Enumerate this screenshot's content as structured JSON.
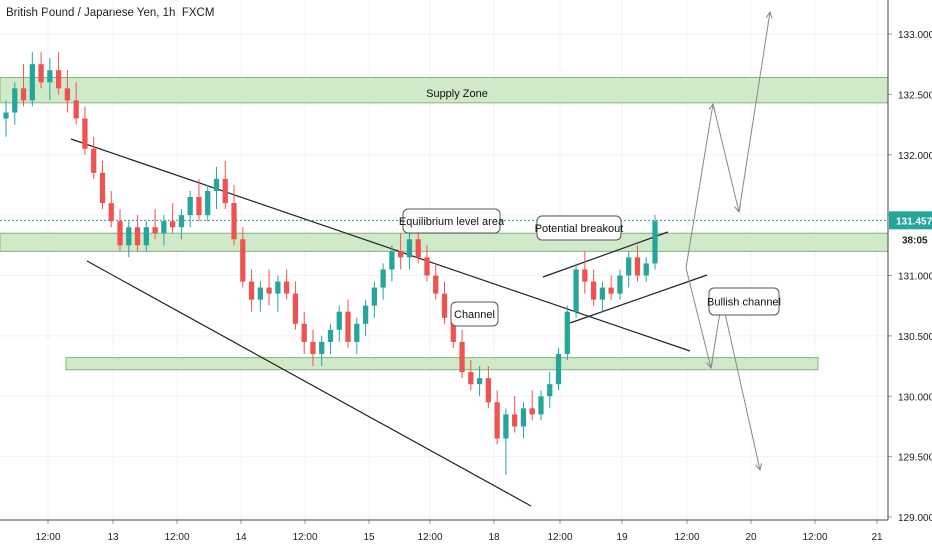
{
  "header": {
    "title": "British Pound / Japanese Yen, 1h, FXCM"
  },
  "colors": {
    "up": "#26a69a",
    "down": "#ef5350",
    "zone_fill": "#c8e6c0",
    "zone_stroke": "#7cb87a",
    "price_line": "#2a9d8f",
    "price_tag": "#26a69a",
    "trend": "#222222",
    "projection": "#888888"
  },
  "chart_data": {
    "type": "candlestick",
    "title": "British Pound / Japanese Yen, 1h, FXCM",
    "ylim": [
      129.0,
      133.3
    ],
    "y_ticks": [
      "133.000",
      "132.500",
      "132.000",
      "131.500",
      "131.000",
      "130.500",
      "130.000",
      "129.500",
      "129.000"
    ],
    "x_ticks": [
      "12:00",
      "13",
      "12:00",
      "14",
      "12:00",
      "15",
      "12:00",
      "18",
      "12:00",
      "19",
      "12:00",
      "20",
      "12:00",
      "21"
    ],
    "current_price": "131.457",
    "countdown": "38:05",
    "candles_ohlc": [
      [
        132.3,
        132.45,
        132.15,
        132.35
      ],
      [
        132.35,
        132.6,
        132.25,
        132.55
      ],
      [
        132.55,
        132.75,
        132.4,
        132.45
      ],
      [
        132.45,
        132.85,
        132.4,
        132.75
      ],
      [
        132.75,
        132.85,
        132.55,
        132.6
      ],
      [
        132.6,
        132.8,
        132.45,
        132.7
      ],
      [
        132.7,
        132.85,
        132.5,
        132.55
      ],
      [
        132.55,
        132.7,
        132.35,
        132.45
      ],
      [
        132.45,
        132.6,
        132.25,
        132.3
      ],
      [
        132.3,
        132.4,
        132.0,
        132.05
      ],
      [
        132.05,
        132.15,
        131.8,
        131.85
      ],
      [
        131.85,
        131.95,
        131.55,
        131.6
      ],
      [
        131.6,
        131.7,
        131.4,
        131.45
      ],
      [
        131.45,
        131.55,
        131.2,
        131.25
      ],
      [
        131.25,
        131.45,
        131.15,
        131.4
      ],
      [
        131.4,
        131.5,
        131.2,
        131.25
      ],
      [
        131.25,
        131.45,
        131.2,
        131.4
      ],
      [
        131.4,
        131.55,
        131.3,
        131.35
      ],
      [
        131.35,
        131.5,
        131.25,
        131.45
      ],
      [
        131.45,
        131.6,
        131.35,
        131.4
      ],
      [
        131.4,
        131.55,
        131.3,
        131.5
      ],
      [
        131.5,
        131.7,
        131.4,
        131.65
      ],
      [
        131.65,
        131.8,
        131.45,
        131.5
      ],
      [
        131.5,
        131.75,
        131.45,
        131.7
      ],
      [
        131.7,
        131.9,
        131.55,
        131.8
      ],
      [
        131.8,
        131.95,
        131.55,
        131.6
      ],
      [
        131.6,
        131.75,
        131.25,
        131.3
      ],
      [
        131.3,
        131.4,
        130.9,
        130.95
      ],
      [
        130.95,
        131.05,
        130.7,
        130.8
      ],
      [
        130.8,
        130.95,
        130.7,
        130.9
      ],
      [
        130.9,
        131.05,
        130.75,
        130.85
      ],
      [
        130.85,
        131.0,
        130.7,
        130.95
      ],
      [
        130.95,
        131.05,
        130.8,
        130.85
      ],
      [
        130.85,
        130.95,
        130.55,
        130.6
      ],
      [
        130.6,
        130.7,
        130.35,
        130.45
      ],
      [
        130.45,
        130.55,
        130.25,
        130.35
      ],
      [
        130.35,
        130.5,
        130.25,
        130.45
      ],
      [
        130.45,
        130.6,
        130.35,
        130.55
      ],
      [
        130.55,
        130.75,
        130.45,
        130.7
      ],
      [
        130.7,
        130.8,
        130.4,
        130.45
      ],
      [
        130.45,
        130.65,
        130.35,
        130.6
      ],
      [
        130.6,
        130.8,
        130.5,
        130.75
      ],
      [
        130.75,
        130.95,
        130.65,
        130.9
      ],
      [
        130.9,
        131.1,
        130.8,
        131.05
      ],
      [
        131.05,
        131.25,
        130.95,
        131.2
      ],
      [
        131.2,
        131.35,
        131.05,
        131.15
      ],
      [
        131.15,
        131.35,
        131.05,
        131.3
      ],
      [
        131.3,
        131.4,
        131.1,
        131.15
      ],
      [
        131.15,
        131.25,
        130.95,
        131.0
      ],
      [
        131.0,
        131.1,
        130.8,
        130.85
      ],
      [
        130.85,
        130.95,
        130.6,
        130.65
      ],
      [
        130.65,
        130.75,
        130.4,
        130.45
      ],
      [
        130.45,
        130.55,
        130.15,
        130.2
      ],
      [
        130.2,
        130.3,
        130.05,
        130.1
      ],
      [
        130.1,
        130.25,
        130.0,
        130.15
      ],
      [
        130.15,
        130.25,
        129.9,
        129.95
      ],
      [
        129.95,
        130.05,
        129.6,
        129.65
      ],
      [
        129.65,
        129.9,
        129.35,
        129.85
      ],
      [
        129.85,
        130.0,
        129.7,
        129.75
      ],
      [
        129.75,
        129.95,
        129.65,
        129.9
      ],
      [
        129.9,
        130.05,
        129.8,
        129.85
      ],
      [
        129.85,
        130.05,
        129.8,
        130.0
      ],
      [
        130.0,
        130.2,
        129.9,
        130.1
      ],
      [
        130.1,
        130.4,
        130.05,
        130.35
      ],
      [
        130.35,
        130.75,
        130.3,
        130.7
      ],
      [
        130.7,
        131.1,
        130.65,
        131.05
      ],
      [
        131.05,
        131.2,
        130.85,
        130.95
      ],
      [
        130.95,
        131.05,
        130.75,
        130.8
      ],
      [
        130.8,
        130.95,
        130.7,
        130.9
      ],
      [
        130.9,
        131.0,
        130.8,
        130.85
      ],
      [
        130.85,
        131.05,
        130.8,
        131.0
      ],
      [
        131.0,
        131.2,
        130.9,
        131.15
      ],
      [
        131.15,
        131.25,
        130.95,
        131.0
      ],
      [
        131.0,
        131.15,
        130.95,
        131.1
      ],
      [
        131.1,
        131.5,
        131.05,
        131.45
      ]
    ]
  },
  "annotations": {
    "supply_zone": "Supply Zone",
    "equilibrium": "Equilibrium level area",
    "potential_breakout": "Potential breakout",
    "channel": "Channel",
    "bullish_channel": "Bullish channel"
  }
}
